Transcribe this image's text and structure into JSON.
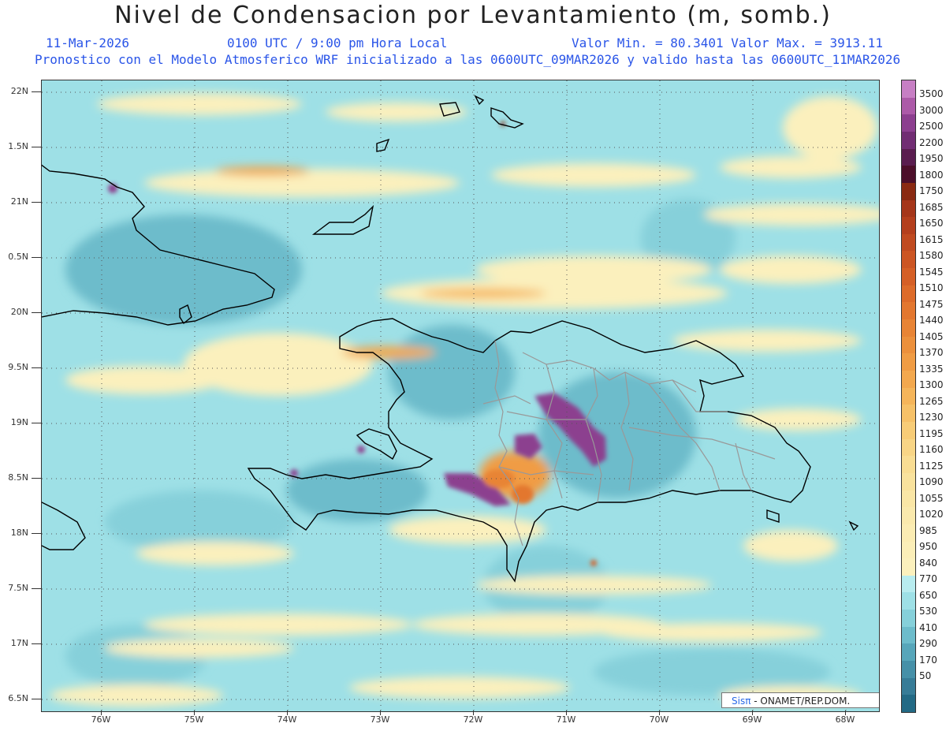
{
  "title": "Nivel de Condensacion por Levantamiento (m, somb.)",
  "header": {
    "date": "11-Mar-2026",
    "time": "0100 UTC / 9:00 pm Hora Local",
    "min_max": "Valor Min. = 80.3401   Valor Max. = 3913.11",
    "model_line": "Pronostico con el Modelo Atmosferico WRF inicializado a las 0600UTC_09MAR2026 y valido hasta las  0600UTC_11MAR2026"
  },
  "axes": {
    "lat_labels": [
      "22N",
      "1.5N",
      "21N",
      "0.5N",
      "20N",
      "9.5N",
      "19N",
      "8.5N",
      "18N",
      "7.5N",
      "17N",
      "6.5N"
    ],
    "lon_labels": [
      "76W",
      "75W",
      "74W",
      "73W",
      "72W",
      "71W",
      "70W",
      "69W",
      "68W"
    ]
  },
  "legend": {
    "labels": [
      "3500",
      "3000",
      "2500",
      "2200",
      "1950",
      "1800",
      "1750",
      "1685",
      "1650",
      "1615",
      "1580",
      "1545",
      "1510",
      "1475",
      "1440",
      "1405",
      "1370",
      "1335",
      "1300",
      "1265",
      "1230",
      "1195",
      "1160",
      "1125",
      "1090",
      "1055",
      "1020",
      "985",
      "950",
      "840",
      "770",
      "650",
      "530",
      "410",
      "290",
      "170",
      "50"
    ],
    "colors": [
      "#c77fc4",
      "#ac5aa8",
      "#8c3f8f",
      "#712d73",
      "#5a1d4f",
      "#4c0f2a",
      "#8a2a12",
      "#a5361a",
      "#b43f1d",
      "#c04a20",
      "#cc5523",
      "#d55f26",
      "#dd6b2a",
      "#e3772f",
      "#e88435",
      "#ec903c",
      "#f09c44",
      "#f3a84e",
      "#f5b55a",
      "#f6c168",
      "#f7cc77",
      "#f8d586",
      "#f9dd93",
      "#f9e29d",
      "#faE6a6",
      "#fae9ad",
      "#fbecb3",
      "#fbeeb8",
      "#fbf0bd",
      "#b8ecef",
      "#9ee0e6",
      "#86d0da",
      "#6dbccb",
      "#57a6ba",
      "#4690a8",
      "#377c97",
      "#236a85"
    ]
  },
  "credit": {
    "logo": "Sisπ",
    "text": " - ONAMET/REP.DOM."
  }
}
